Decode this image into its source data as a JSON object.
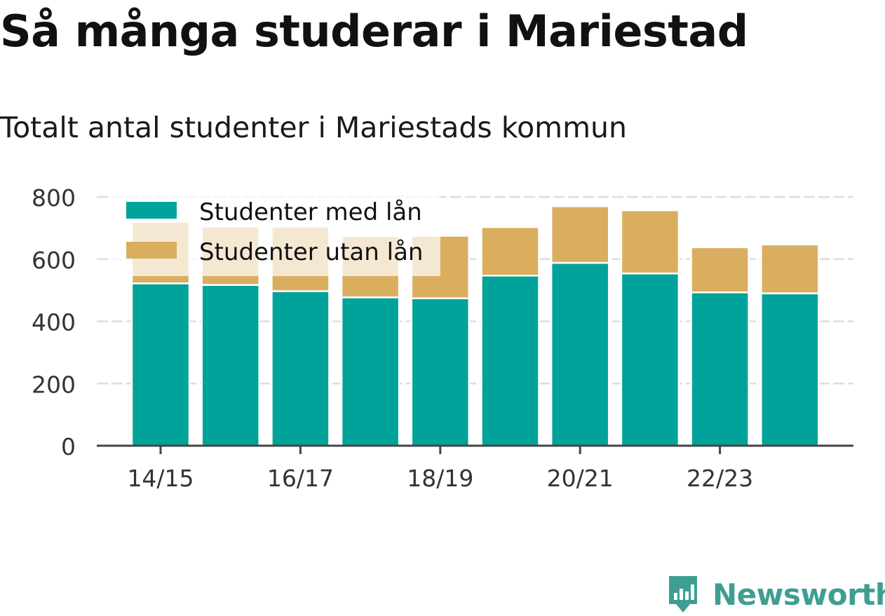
{
  "title": "Så många studerar i Mariestad",
  "subtitle": "Totalt antal studenter i Mariestads kommun",
  "brand": {
    "name": "Newsworthy",
    "color": "#3f9e92",
    "icon": "newsworthy-bar-chart-icon"
  },
  "colors": {
    "with_loan": "#00a39a",
    "without_loan": "#d9ae5f",
    "grid": "#dddddd",
    "axis": "#444444"
  },
  "chart_data": {
    "type": "bar",
    "stacked": true,
    "categories": [
      "14/15",
      "15/16",
      "16/17",
      "17/18",
      "18/19",
      "19/20",
      "20/21",
      "21/22",
      "22/23",
      "23/24"
    ],
    "tick_labels": [
      "14/15",
      "16/17",
      "18/19",
      "20/21",
      "22/23"
    ],
    "series": [
      {
        "name": "Studenter med lån",
        "values": [
          522,
          517,
          497,
          477,
          474,
          547,
          588,
          554,
          493,
          490
        ]
      },
      {
        "name": "Studenter utan lån",
        "values": [
          198,
          188,
          207,
          197,
          201,
          156,
          182,
          203,
          145,
          157
        ]
      }
    ],
    "y_ticks": [
      "0",
      "200",
      "400",
      "600",
      "800"
    ],
    "ylim": [
      0,
      800
    ],
    "grid": true,
    "legend_position": "top-left"
  }
}
